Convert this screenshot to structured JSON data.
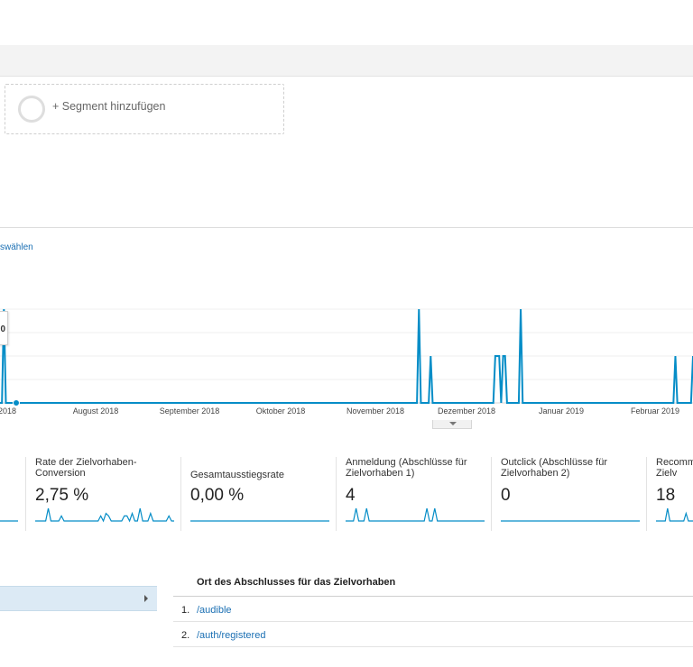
{
  "segment": {
    "add_label": "+ Segment hinzufügen"
  },
  "chart_controls": {
    "select_label": "swählen"
  },
  "tooltip": {
    "value": "0"
  },
  "chart_data": {
    "type": "line",
    "x_tick_labels": [
      "2018",
      "August 2018",
      "September 2018",
      "Oktober 2018",
      "November 2018",
      "Dezember 2018",
      "Januar 2019",
      "Februar 2019"
    ],
    "series": [
      {
        "values": [
          0,
          0,
          4,
          0,
          0,
          0,
          0,
          0,
          0,
          0,
          0,
          0,
          0,
          0,
          0,
          0,
          0,
          0,
          0,
          0,
          0,
          0,
          0,
          0,
          0,
          0,
          0,
          0,
          0,
          0,
          0,
          0,
          0,
          0,
          0,
          0,
          0,
          0,
          0,
          0,
          0,
          0,
          0,
          0,
          0,
          0,
          0,
          0,
          0,
          0,
          0,
          0,
          0,
          0,
          0,
          0,
          0,
          0,
          0,
          0,
          0,
          0,
          0,
          0,
          0,
          0,
          0,
          0,
          0,
          0,
          0,
          0,
          0,
          0,
          0,
          0,
          0,
          0,
          0,
          0,
          0,
          0,
          0,
          0,
          0,
          0,
          0,
          0,
          0,
          0,
          0,
          0,
          0,
          0,
          0,
          0,
          0,
          0,
          0,
          0,
          0,
          0,
          0,
          0,
          0,
          0,
          0,
          0,
          0,
          0,
          0,
          0,
          0,
          0,
          0,
          0,
          0,
          0,
          0,
          0,
          0,
          0,
          0,
          0,
          0,
          0,
          0,
          0,
          0,
          0,
          0,
          0,
          0,
          0,
          0,
          0,
          0,
          0,
          0,
          0,
          0,
          0,
          0,
          0,
          0,
          0,
          0,
          0,
          0,
          0,
          0,
          0,
          0,
          0,
          0,
          0,
          0,
          0,
          0,
          0,
          0,
          0,
          0,
          0,
          0,
          0,
          0,
          0,
          0,
          0,
          0,
          0,
          0,
          0,
          0,
          0,
          0,
          0,
          0,
          0,
          0,
          0,
          0,
          0,
          0,
          0,
          0,
          0,
          0,
          0,
          0,
          0,
          0,
          0,
          0,
          0,
          0,
          0,
          0,
          0,
          0,
          0,
          0,
          0,
          0,
          0,
          0,
          0,
          0,
          0,
          0,
          0,
          0,
          0,
          4,
          0,
          0,
          0,
          0,
          0,
          2,
          0,
          0,
          0,
          0,
          0,
          0,
          0,
          0,
          0,
          0,
          0,
          0,
          0,
          0,
          0,
          0,
          0,
          0,
          0,
          0,
          0,
          0,
          0,
          0,
          0,
          0,
          0,
          0,
          0,
          0,
          0,
          0,
          2,
          2,
          2,
          0,
          2,
          2,
          0,
          0,
          0,
          0,
          0,
          0,
          0,
          4,
          0,
          0,
          0,
          0,
          0,
          0,
          0,
          0,
          0,
          0,
          0,
          0,
          0,
          0,
          0,
          0,
          0,
          0,
          0,
          0,
          0,
          0,
          0,
          0,
          0,
          0,
          0,
          0,
          0,
          0,
          0,
          0,
          0,
          0,
          0,
          0,
          0,
          0,
          0,
          0,
          0,
          0,
          0,
          0,
          0,
          0,
          0,
          0,
          0,
          0,
          0,
          0,
          0,
          0,
          0,
          0,
          0,
          0,
          0,
          0,
          0,
          0,
          0,
          0,
          0,
          0,
          0,
          0,
          0,
          0,
          0,
          0,
          0,
          0,
          0,
          0,
          0,
          0,
          2,
          0,
          0,
          0,
          0,
          0,
          0,
          0,
          0,
          2
        ]
      }
    ],
    "ylim": [
      0,
      4
    ],
    "grid": true,
    "color": "#058dc7"
  },
  "metrics": [
    {
      "title": "",
      "value": "",
      "spark": [
        0,
        0,
        0,
        0,
        0,
        0,
        0,
        0,
        0,
        0,
        0,
        0,
        0,
        0,
        0,
        0,
        0,
        0,
        0,
        0,
        0,
        0,
        0,
        0,
        0,
        0,
        0,
        0,
        0,
        0,
        0,
        0,
        0,
        0,
        0,
        0,
        0,
        0,
        0,
        0
      ]
    },
    {
      "title": "Rate der Zielvorhaben-Conversion",
      "value": "2,75 %",
      "spark": [
        0,
        0,
        0,
        0,
        0,
        5,
        0,
        0,
        0,
        0,
        2,
        0,
        0,
        0,
        0,
        0,
        0,
        0,
        0,
        0,
        0,
        0,
        0,
        0,
        0,
        2,
        0,
        3,
        2,
        0,
        0,
        0,
        0,
        0,
        2,
        2,
        0,
        3,
        0,
        0,
        5,
        0,
        0,
        0,
        3,
        0,
        0,
        0,
        0,
        0,
        0,
        2,
        0,
        0
      ]
    },
    {
      "title": "Gesamtausstiegsrate",
      "value": "0,00 %",
      "spark": [
        0,
        0,
        0,
        0,
        0,
        0,
        0,
        0,
        0,
        0,
        0,
        0,
        0,
        0,
        0,
        0,
        0,
        0,
        0,
        0,
        0,
        0,
        0,
        0,
        0,
        0,
        0,
        0,
        0,
        0,
        0,
        0,
        0,
        0,
        0,
        0,
        0,
        0,
        0,
        0
      ]
    },
    {
      "title": "Anmeldung (Abschlüsse für Zielvorhaben 1)",
      "value": "4",
      "spark": [
        0,
        0,
        0,
        0,
        5,
        0,
        0,
        0,
        5,
        0,
        0,
        0,
        0,
        0,
        0,
        0,
        0,
        0,
        0,
        0,
        0,
        0,
        0,
        0,
        0,
        0,
        0,
        0,
        0,
        0,
        0,
        5,
        0,
        0,
        5,
        0,
        0,
        0,
        0,
        0,
        0,
        0,
        0,
        0,
        0,
        0,
        0,
        0,
        0,
        0,
        0,
        0,
        0,
        0
      ]
    },
    {
      "title": "Outclick (Abschlüsse für Zielvorhaben 2)",
      "value": "0",
      "spark": [
        0,
        0,
        0,
        0,
        0,
        0,
        0,
        0,
        0,
        0,
        0,
        0,
        0,
        0,
        0,
        0,
        0,
        0,
        0,
        0,
        0,
        0,
        0,
        0,
        0,
        0,
        0,
        0,
        0,
        0,
        0,
        0,
        0,
        0,
        0,
        0,
        0,
        0,
        0,
        0
      ]
    },
    {
      "title": "Recomm für Zielv",
      "value": "18",
      "spark": [
        0,
        0,
        0,
        0,
        0,
        5,
        0,
        0,
        0,
        0,
        0,
        0,
        0,
        3,
        0,
        0,
        0
      ]
    }
  ],
  "table": {
    "column_header": "Ort des Abschlusses für das Zielvorhaben",
    "rows": [
      {
        "num": "1.",
        "path": "/audible"
      },
      {
        "num": "2.",
        "path": "/auth/registered"
      }
    ]
  }
}
